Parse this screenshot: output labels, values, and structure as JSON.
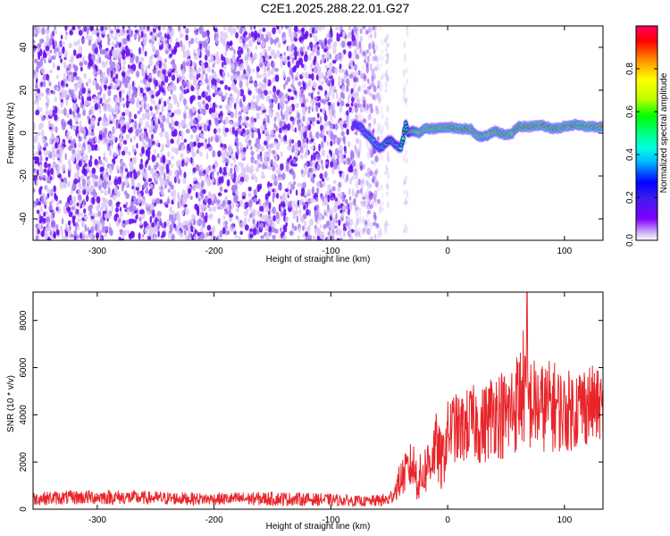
{
  "title": "C2E1.2025.288.22.01.G27",
  "chart_data": [
    {
      "type": "heatmap",
      "title": "C2E1.2025.288.22.01.G27",
      "xlabel": "Height of straight line (km)",
      "ylabel": "Frequency (Hz)",
      "xlim": [
        -355,
        133
      ],
      "ylim": [
        -50,
        50
      ],
      "xticks": [
        -300,
        -200,
        -100,
        0,
        100
      ],
      "yticks": [
        -40,
        -20,
        0,
        20,
        40
      ],
      "colorbar": {
        "label": "Normalized spectral amplitude",
        "range": [
          0,
          1
        ],
        "ticks": [
          0.0,
          0.2,
          0.4,
          0.6,
          0.8
        ],
        "colormap": [
          "#ffffff",
          "#c9a8f5",
          "#7f00ff",
          "#3a1cf0",
          "#0000ff",
          "#00bfff",
          "#00ffe0",
          "#00ff80",
          "#00ff00",
          "#c0ff00",
          "#ffff00",
          "#ff9000",
          "#ff0000",
          "#ff0066"
        ]
      },
      "noise_region": {
        "x_from": -355,
        "x_to": -65,
        "amplitude": 0.15
      },
      "signal_track": {
        "x": [
          -80,
          -75,
          -70,
          -65,
          -62,
          -58,
          -55,
          -52,
          -48,
          -44,
          -40,
          -38,
          -36,
          -34,
          -30,
          -25,
          -20,
          -10,
          0,
          10,
          20,
          25,
          30,
          40,
          50,
          55,
          60,
          70,
          80,
          90,
          100,
          110,
          120,
          133
        ],
        "frequency": [
          4,
          3,
          0,
          -3,
          -5,
          -7,
          -6,
          -4,
          -3,
          -6,
          -7,
          -2,
          4,
          0,
          1,
          0,
          2,
          2,
          3,
          2,
          2,
          -1,
          -2,
          1,
          -1,
          0,
          3,
          3,
          4,
          2,
          3,
          4,
          3,
          3
        ],
        "amplitude": [
          0.35,
          0.35,
          0.4,
          0.45,
          0.45,
          0.4,
          0.45,
          0.5,
          0.5,
          0.45,
          0.5,
          0.55,
          0.55,
          0.6,
          0.7,
          0.8,
          0.9,
          0.85,
          0.9,
          0.95,
          0.9,
          0.85,
          0.8,
          0.85,
          0.9,
          0.85,
          0.9,
          0.95,
          0.95,
          0.9,
          0.95,
          0.9,
          0.95,
          0.9
        ]
      }
    },
    {
      "type": "line",
      "xlabel": "Height of straight line (km)",
      "ylabel": "SNR (10 * v/v)",
      "xlim": [
        -355,
        133
      ],
      "ylim": [
        0,
        9200
      ],
      "xticks": [
        -300,
        -200,
        -100,
        0,
        100
      ],
      "yticks": [
        0,
        2000,
        4000,
        6000,
        8000
      ],
      "color": "#e8252a",
      "series": [
        {
          "name": "SNR",
          "x": [
            -355,
            -300,
            -250,
            -200,
            -150,
            -100,
            -70,
            -50,
            -45,
            -40,
            -35,
            -30,
            -25,
            -20,
            -15,
            -10,
            -5,
            0,
            5,
            10,
            20,
            30,
            40,
            50,
            60,
            65,
            70,
            80,
            90,
            100,
            110,
            120,
            133
          ],
          "values": [
            450,
            520,
            470,
            430,
            450,
            400,
            330,
            400,
            800,
            1300,
            1600,
            1900,
            1200,
            1600,
            2100,
            2700,
            1900,
            3200,
            3500,
            3300,
            3700,
            3500,
            4200,
            3900,
            4600,
            5200,
            4500,
            4300,
            4400,
            4100,
            4300,
            4500,
            4300
          ],
          "spread": [
            280,
            320,
            280,
            260,
            300,
            260,
            220,
            300,
            450,
            800,
            900,
            1100,
            1000,
            1100,
            1300,
            1400,
            1300,
            1400,
            1500,
            1500,
            1600,
            1700,
            1900,
            2000,
            2200,
            2600,
            2100,
            1900,
            2000,
            1700,
            1800,
            1800,
            1400
          ],
          "peak": {
            "x": 68,
            "value": 9200
          }
        }
      ]
    }
  ]
}
